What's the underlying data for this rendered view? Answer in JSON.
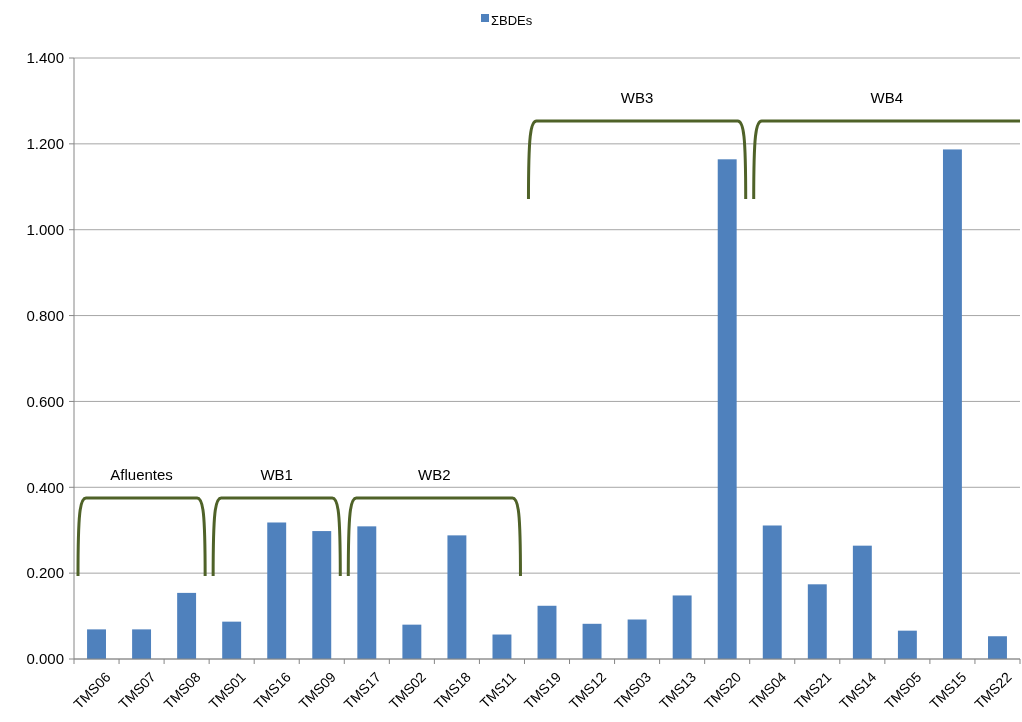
{
  "chart_data": {
    "type": "bar",
    "categories": [
      "TMS06",
      "TMS07",
      "TMS08",
      "TMS01",
      "TMS16",
      "TMS09",
      "TMS17",
      "TMS02",
      "TMS18",
      "TMS11",
      "TMS19",
      "TMS12",
      "TMS03",
      "TMS13",
      "TMS20",
      "TMS04",
      "TMS21",
      "TMS14",
      "TMS05",
      "TMS15",
      "TMS22"
    ],
    "series": [
      {
        "name": "ΣBDEs",
        "color": "#4f81bd",
        "values": [
          0.069,
          0.069,
          0.154,
          0.087,
          0.318,
          0.298,
          0.309,
          0.08,
          0.288,
          0.057,
          0.124,
          0.082,
          0.092,
          0.148,
          1.164,
          0.311,
          0.174,
          0.264,
          0.066,
          1.187,
          0.053
        ]
      }
    ],
    "ylim": [
      0,
      1.4
    ],
    "yticks": [
      {
        "value": 0,
        "label": "0.000"
      },
      {
        "value": 0.2,
        "label": "0.200"
      },
      {
        "value": 0.4,
        "label": "0.400"
      },
      {
        "value": 0.6,
        "label": "0.600"
      },
      {
        "value": 0.8,
        "label": "0.800"
      },
      {
        "value": 1,
        "label": "1.000"
      },
      {
        "value": 1.2,
        "label": "1.200"
      },
      {
        "value": 1.4,
        "label": "1.400"
      }
    ],
    "grid": "y",
    "legend": "top",
    "annotations": [
      "Afluentes",
      "WB1",
      "WB2",
      "WB3",
      "WB4"
    ]
  }
}
